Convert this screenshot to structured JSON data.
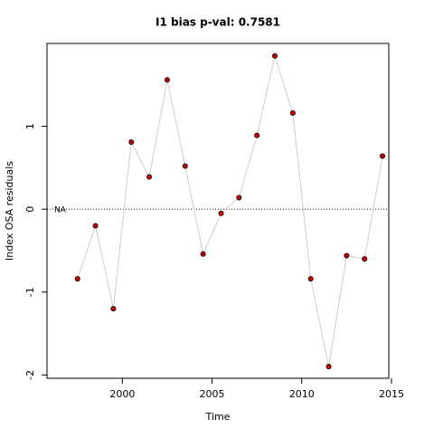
{
  "chart_data": {
    "type": "scatter",
    "title": "I1 bias p-val: 0.7581",
    "title_color": "#228b22",
    "x_label": "Time",
    "y_label": "Index OSA residuals",
    "x": [
      1997.5,
      1998.5,
      1999.5,
      2000.5,
      2001.5,
      2002.5,
      2003.5,
      2004.5,
      2005.5,
      2006.5,
      2007.5,
      2008.5,
      2009.5,
      2010.5,
      2011.5,
      2012.5,
      2013.5,
      2014.5
    ],
    "values": [
      -0.84,
      -0.2,
      -1.2,
      0.81,
      0.39,
      1.56,
      0.52,
      -0.54,
      -0.05,
      0.14,
      0.89,
      1.85,
      1.16,
      -0.84,
      -1.9,
      -0.56,
      -0.6,
      0.64
    ],
    "color": "#cc0000",
    "line_color": "#cccccc",
    "xlim": [
      1995.8,
      2014.85
    ],
    "ylim": [
      -2.04,
      2.0
    ],
    "xticks": [
      2000,
      2005,
      2010,
      2015
    ],
    "yticks": [
      -2,
      -1,
      0,
      1
    ],
    "hline": 0,
    "hline_label": "NA"
  }
}
